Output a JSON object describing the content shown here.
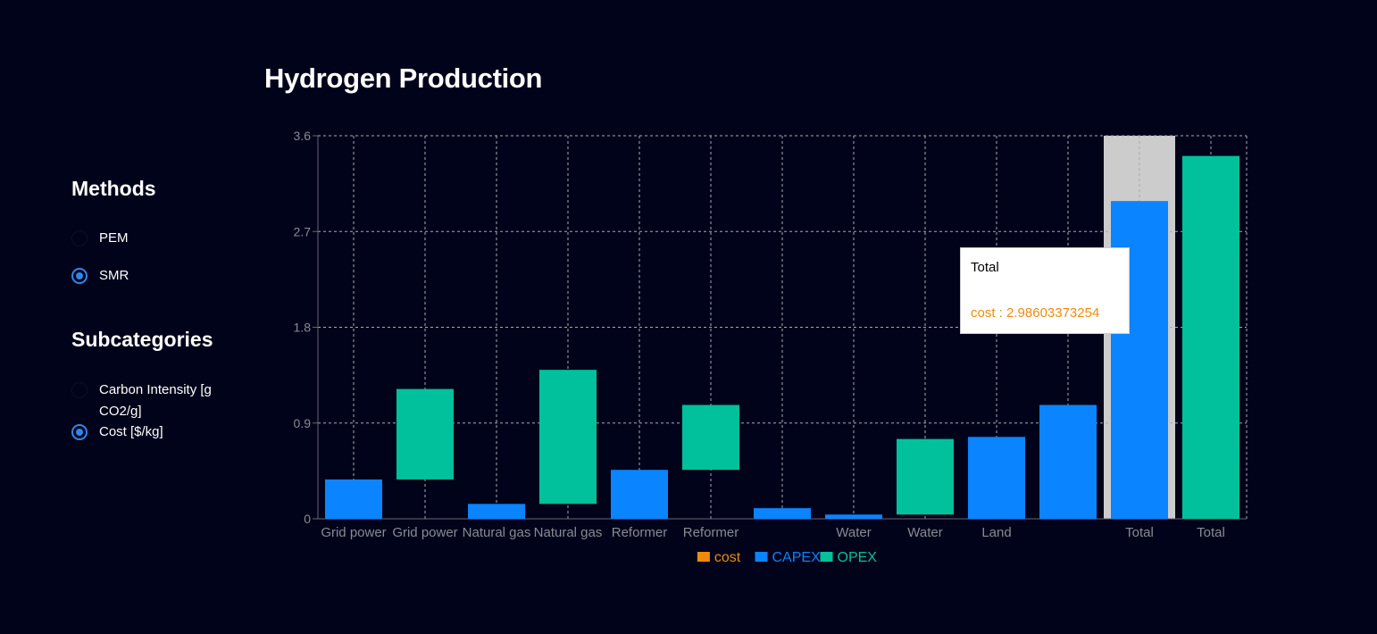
{
  "page": {
    "title": "Hydrogen Production"
  },
  "methods": {
    "heading": "Methods",
    "options": [
      {
        "label": "PEM",
        "selected": false
      },
      {
        "label": "SMR",
        "selected": true
      }
    ]
  },
  "subcategories": {
    "heading": "Subcategories",
    "options": [
      {
        "label": "Carbon Intensity [g CO2/g]",
        "selected": false
      },
      {
        "label": "Cost [$/kg]",
        "selected": true
      }
    ]
  },
  "tooltip": {
    "title": "Total",
    "item_label": "cost",
    "item_value": "2.98603373254",
    "color": "#f08a0c"
  },
  "chart_data": {
    "type": "bar",
    "subtype": "waterfall",
    "title": "Hydrogen Production",
    "xlabel": "",
    "ylabel": "",
    "ylim": [
      0,
      3.6
    ],
    "yticks": [
      0,
      0.9,
      1.8,
      2.7,
      3.6
    ],
    "grid": true,
    "legend_position": "bottom",
    "legend": [
      {
        "name": "cost",
        "color": "#f08a0c"
      },
      {
        "name": "CAPEX",
        "color": "#0a84ff"
      },
      {
        "name": "OPEX",
        "color": "#00c19c"
      }
    ],
    "categories": [
      "Grid power",
      "Grid power",
      "Natural gas",
      "Natural gas",
      "Reformer",
      "Reformer",
      "",
      "Water",
      "Water",
      "Land",
      "",
      "Total",
      "Total"
    ],
    "bars": [
      {
        "category": "Grid power",
        "series": "CAPEX",
        "base": 0,
        "top": 0.37
      },
      {
        "category": "Grid power",
        "series": "OPEX",
        "base": 0.37,
        "top": 1.22
      },
      {
        "category": "Natural gas",
        "series": "CAPEX",
        "base": 0,
        "top": 0.14
      },
      {
        "category": "Natural gas",
        "series": "OPEX",
        "base": 0.14,
        "top": 1.4
      },
      {
        "category": "Reformer",
        "series": "CAPEX",
        "base": 0,
        "top": 0.46
      },
      {
        "category": "Reformer",
        "series": "OPEX",
        "base": 0.46,
        "top": 1.07
      },
      {
        "category": "",
        "series": "CAPEX",
        "base": 0,
        "top": 0.1
      },
      {
        "category": "Water",
        "series": "CAPEX",
        "base": 0,
        "top": 0.04
      },
      {
        "category": "Water",
        "series": "OPEX",
        "base": 0.04,
        "top": 0.75
      },
      {
        "category": "Land",
        "series": "CAPEX",
        "base": 0,
        "top": 0.77
      },
      {
        "category": "",
        "series": "CAPEX",
        "base": 0,
        "top": 1.07
      },
      {
        "category": "Total",
        "series": "CAPEX",
        "base": 0,
        "top": 2.986
      },
      {
        "category": "Total",
        "series": "OPEX",
        "base": 0,
        "top": 3.41
      }
    ],
    "highlight_index": 11
  }
}
